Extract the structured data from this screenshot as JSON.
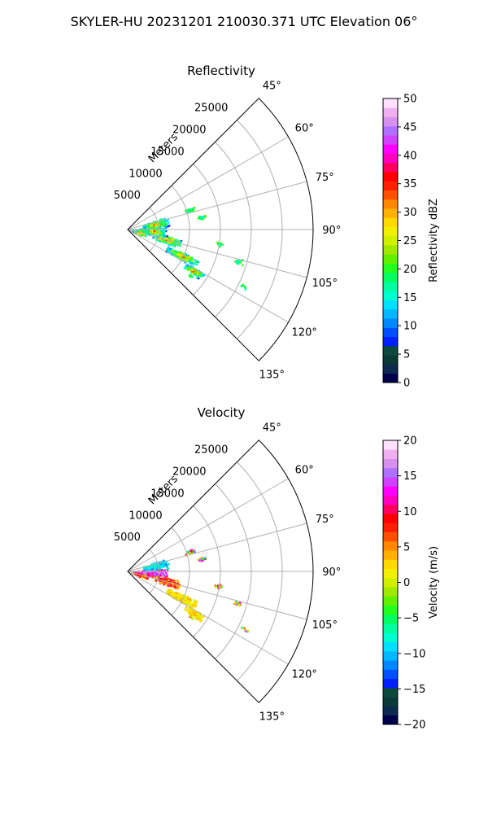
{
  "figure": {
    "title": "SKYLER-HU  20231201  210030.371 UTC Elevation 06°"
  },
  "chart_data": [
    {
      "type": "polar-sector",
      "title": "Reflectivity",
      "radial_axis_label": "Meters",
      "radial_ticks": [
        "5000",
        "10000",
        "15000",
        "20000",
        "25000"
      ],
      "radial_tick_values": [
        5000,
        10000,
        15000,
        20000,
        25000
      ],
      "angular_ticks": [
        "45°",
        "60°",
        "75°",
        "90°",
        "105°",
        "120°",
        "135°"
      ],
      "angular_tick_values": [
        45,
        60,
        75,
        90,
        105,
        120,
        135
      ],
      "theta_range_deg": [
        45,
        135
      ],
      "r_range_m": [
        0,
        30000
      ],
      "grid": true,
      "colorbar": {
        "label": "Reflectivity dBZ",
        "ticks": [
          "0",
          "5",
          "10",
          "15",
          "20",
          "25",
          "30",
          "35",
          "40",
          "45",
          "50"
        ],
        "range": [
          0,
          50
        ],
        "colors": [
          "#00004a",
          "#0c2a50",
          "#0a3a38",
          "#0b4a3c",
          "#0020ff",
          "#0050ff",
          "#0088ff",
          "#00b8ff",
          "#00e0ff",
          "#00ffd0",
          "#00ffa0",
          "#00ff60",
          "#20ff20",
          "#60f000",
          "#a0e800",
          "#d0f000",
          "#f0f000",
          "#ffd800",
          "#ffb000",
          "#ff8800",
          "#ff5000",
          "#ff2000",
          "#ff0000",
          "#ff0060",
          "#ff00c0",
          "#ff00ff",
          "#d040ff",
          "#b070ff",
          "#d890f0",
          "#f0b0f0",
          "#ffe0ff"
        ]
      },
      "field": "reflectivity"
    },
    {
      "type": "polar-sector",
      "title": "Velocity",
      "radial_axis_label": "Meters",
      "radial_ticks": [
        "5000",
        "10000",
        "15000",
        "20000",
        "25000"
      ],
      "radial_tick_values": [
        5000,
        10000,
        15000,
        20000,
        25000
      ],
      "angular_ticks": [
        "45°",
        "60°",
        "75°",
        "90°",
        "105°",
        "120°",
        "135°"
      ],
      "angular_tick_values": [
        45,
        60,
        75,
        90,
        105,
        120,
        135
      ],
      "theta_range_deg": [
        45,
        135
      ],
      "r_range_m": [
        0,
        30000
      ],
      "grid": true,
      "colorbar": {
        "label": "Velocity (m/s)",
        "ticks": [
          "−20",
          "−15",
          "−10",
          "−5",
          "0",
          "5",
          "10",
          "15",
          "20"
        ],
        "range": [
          -20,
          20
        ],
        "colors": [
          "#00004a",
          "#0c2a50",
          "#0a3a38",
          "#0b4a3c",
          "#0020ff",
          "#0050ff",
          "#0088ff",
          "#00b8ff",
          "#00e0ff",
          "#00ffd0",
          "#00ffa0",
          "#00ff60",
          "#20ff20",
          "#60f000",
          "#a0e800",
          "#d0f000",
          "#f0f000",
          "#ffd800",
          "#ffb000",
          "#ff8800",
          "#ff5000",
          "#ff2000",
          "#ff0000",
          "#ff0060",
          "#ff00c0",
          "#ff00ff",
          "#d040ff",
          "#b070ff",
          "#d890f0",
          "#f0b0f0",
          "#ffe0ff"
        ]
      },
      "field": "velocity"
    }
  ]
}
